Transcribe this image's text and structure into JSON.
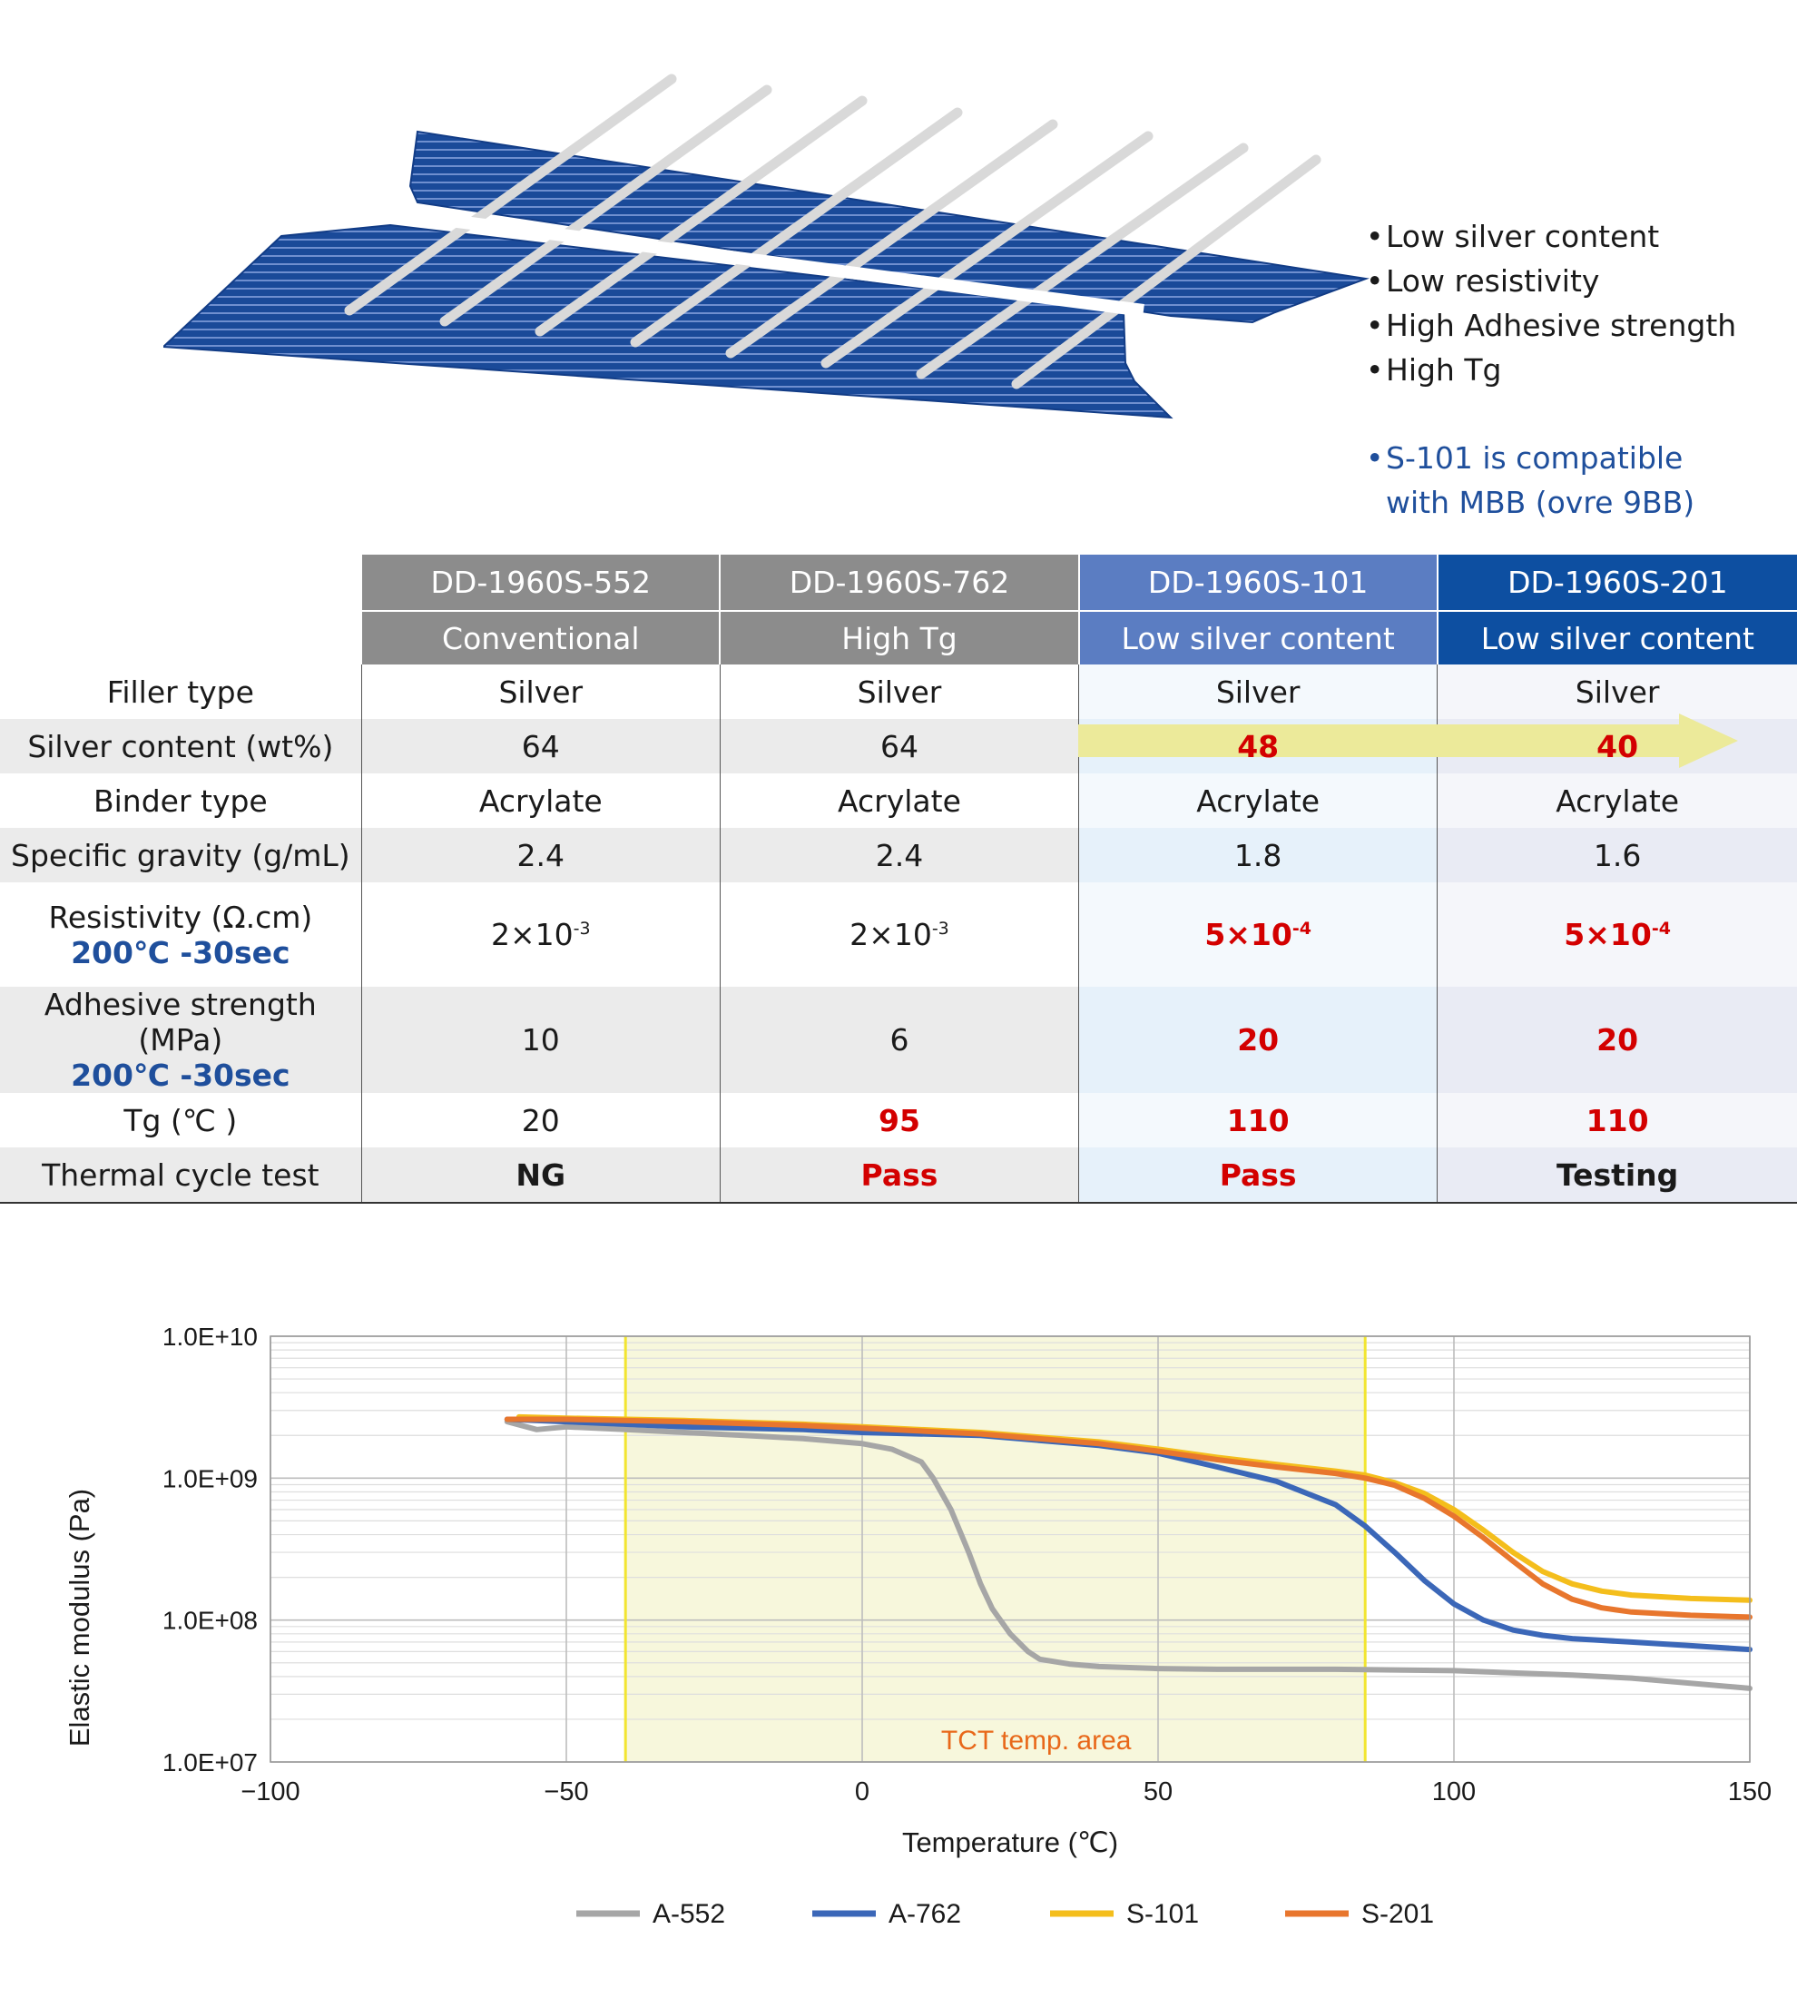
{
  "features": {
    "items": [
      "Low silver content",
      "Low resistivity",
      "High Adhesive strength",
      "High Tg"
    ],
    "note_line1": "S-101 is compatible",
    "note_line2": "with MBB (ovre 9BB)",
    "bullet_glyph": "•",
    "note_color": "#1f4f9c"
  },
  "table": {
    "products": [
      {
        "code": "DD-1960S-552",
        "type": "Conventional",
        "header_color": "#8c8c8c"
      },
      {
        "code": "DD-1960S-762",
        "type": "High Tg",
        "header_color": "#8c8c8c"
      },
      {
        "code": "DD-1960S-101",
        "type": "Low silver content",
        "header_color": "#5b7dc2"
      },
      {
        "code": "DD-1960S-201",
        "type": "Low silver content",
        "header_color": "#0d4fa1"
      }
    ],
    "rows": {
      "filler": {
        "label": "Filler type",
        "values": [
          "Silver",
          "Silver",
          "Silver",
          "Silver"
        ]
      },
      "silver": {
        "label": "Silver content (wt%)",
        "values": [
          "64",
          "64",
          "48",
          "40"
        ]
      },
      "binder": {
        "label": "Binder type",
        "values": [
          "Acrylate",
          "Acrylate",
          "Acrylate",
          "Acrylate"
        ]
      },
      "gravity": {
        "label": "Specific gravity (g/mL)",
        "values": [
          "2.4",
          "2.4",
          "1.8",
          "1.6"
        ]
      },
      "resistivity": {
        "label": "Resistivity (Ω.cm)",
        "condition": "200℃ -30sec",
        "base": [
          "2×10",
          "2×10",
          "5×10",
          "5×10"
        ],
        "exp": [
          "-3",
          "-3",
          "-4",
          "-4"
        ]
      },
      "adhesive": {
        "label": "Adhesive strength (MPa)",
        "condition": "200℃ -30sec",
        "values": [
          "10",
          "6",
          "20",
          "20"
        ]
      },
      "tg": {
        "label": "Tg (℃ )",
        "values": [
          "20",
          "95",
          "110",
          "110"
        ]
      },
      "thermal": {
        "label": "Thermal cycle test",
        "values": [
          "NG",
          "Pass",
          "Pass",
          "Testing"
        ]
      }
    },
    "highlight_color": "#d30000",
    "arrow_color": "#ecea9a"
  },
  "chart_data": {
    "type": "line",
    "title": "",
    "xlabel": "Temperature (℃)",
    "ylabel": "Elastic modulus (Pa)",
    "xlim": [
      -100,
      150
    ],
    "xticks": [
      -100,
      -50,
      0,
      50,
      100,
      150
    ],
    "ylim": [
      10000000.0,
      10000000000.0
    ],
    "yscale": "log",
    "ytick_labels": [
      "1.0E+07",
      "1.0E+08",
      "1.0E+09",
      "1.0E+10"
    ],
    "grid": true,
    "legend_position": "bottom",
    "band": {
      "x": [
        -40,
        85
      ],
      "label": "TCT temp. area",
      "fill": "#f7f7dc",
      "line_color": "#f2e530",
      "label_color": "#e8681a"
    },
    "series": [
      {
        "name": "A-552",
        "color": "#a6a6a6",
        "x": [
          -60,
          -55,
          -50,
          -40,
          -30,
          -20,
          -10,
          0,
          5,
          10,
          12,
          15,
          18,
          20,
          22,
          25,
          28,
          30,
          35,
          40,
          50,
          60,
          80,
          100,
          120,
          130,
          150
        ],
        "y": [
          2500000000.0,
          2200000000.0,
          2300000000.0,
          2200000000.0,
          2100000000.0,
          2000000000.0,
          1900000000.0,
          1750000000.0,
          1600000000.0,
          1300000000.0,
          1000000000.0,
          600000000.0,
          300000000.0,
          180000000.0,
          120000000.0,
          80000000.0,
          60000000.0,
          53000000.0,
          49000000.0,
          47000000.0,
          45500000.0,
          45000000.0,
          45000000.0,
          44000000.0,
          41000000.0,
          39000000.0,
          33000000.0
        ]
      },
      {
        "name": "A-762",
        "color": "#3b67b8",
        "x": [
          -60,
          -50,
          -30,
          -10,
          0,
          20,
          40,
          50,
          60,
          70,
          80,
          85,
          90,
          95,
          100,
          105,
          110,
          115,
          120,
          130,
          140,
          150
        ],
        "y": [
          2600000000.0,
          2500000000.0,
          2300000000.0,
          2200000000.0,
          2100000000.0,
          2000000000.0,
          1700000000.0,
          1500000000.0,
          1200000000.0,
          950000000.0,
          650000000.0,
          460000000.0,
          300000000.0,
          190000000.0,
          130000000.0,
          100000000.0,
          85000000.0,
          78000000.0,
          74000000.0,
          70000000.0,
          66000000.0,
          62000000.0
        ]
      },
      {
        "name": "S-101",
        "color": "#f4be1c",
        "x": [
          -58,
          -50,
          -30,
          -10,
          0,
          20,
          40,
          50,
          60,
          70,
          80,
          85,
          90,
          95,
          100,
          105,
          110,
          115,
          120,
          125,
          130,
          140,
          150
        ],
        "y": [
          2700000000.0,
          2650000000.0,
          2550000000.0,
          2400000000.0,
          2300000000.0,
          2100000000.0,
          1800000000.0,
          1600000000.0,
          1400000000.0,
          1250000000.0,
          1120000000.0,
          1050000000.0,
          930000000.0,
          780000000.0,
          600000000.0,
          430000000.0,
          300000000.0,
          220000000.0,
          180000000.0,
          160000000.0,
          150000000.0,
          142000000.0,
          138000000.0
        ]
      },
      {
        "name": "S-201",
        "color": "#e8762d",
        "x": [
          -60,
          -50,
          -30,
          -10,
          0,
          20,
          40,
          50,
          60,
          70,
          80,
          85,
          90,
          95,
          100,
          105,
          110,
          115,
          120,
          125,
          130,
          140,
          150
        ],
        "y": [
          2600000000.0,
          2600000000.0,
          2500000000.0,
          2350000000.0,
          2250000000.0,
          2050000000.0,
          1750000000.0,
          1550000000.0,
          1350000000.0,
          1200000000.0,
          1080000000.0,
          1000000000.0,
          890000000.0,
          720000000.0,
          540000000.0,
          380000000.0,
          260000000.0,
          180000000.0,
          140000000.0,
          122000000.0,
          114000000.0,
          108000000.0,
          105000000.0
        ]
      }
    ]
  }
}
